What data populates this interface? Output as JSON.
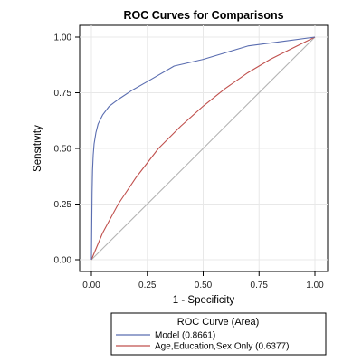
{
  "chart_data": {
    "type": "line",
    "title": "ROC Curves for Comparisons",
    "xlabel": "1 - Specificity",
    "ylabel": "Sensitivity",
    "xlim": [
      0,
      1
    ],
    "ylim": [
      0,
      1
    ],
    "x_ticks": [
      "0.00",
      "0.25",
      "0.50",
      "0.75",
      "1.00"
    ],
    "y_ticks": [
      "0.00",
      "0.25",
      "0.50",
      "0.75",
      "1.00"
    ],
    "grid": true,
    "legend": {
      "title": "ROC Curve (Area)",
      "placement": "bottom"
    },
    "series": [
      {
        "name": "Model",
        "area_label": "(0.8661)",
        "color": "#5a6db0",
        "x": [
          0,
          0.003,
          0.005,
          0.008,
          0.012,
          0.02,
          0.03,
          0.05,
          0.08,
          0.12,
          0.18,
          0.25,
          0.37,
          0.5,
          0.6,
          0.7,
          0.85,
          1.0
        ],
        "y": [
          0,
          0.3,
          0.4,
          0.47,
          0.52,
          0.57,
          0.61,
          0.65,
          0.69,
          0.72,
          0.76,
          0.8,
          0.87,
          0.9,
          0.93,
          0.96,
          0.98,
          1.0
        ]
      },
      {
        "name": "Age,Education,Sex Only",
        "area_label": "(0.6377)",
        "color": "#c0504d",
        "x": [
          0,
          0.05,
          0.12,
          0.2,
          0.3,
          0.4,
          0.5,
          0.6,
          0.7,
          0.8,
          0.9,
          1.0
        ],
        "y": [
          0,
          0.12,
          0.25,
          0.37,
          0.5,
          0.6,
          0.69,
          0.77,
          0.84,
          0.9,
          0.95,
          1.0
        ]
      },
      {
        "name": "",
        "color": "#b3b3b3",
        "x": [
          0,
          1
        ],
        "y": [
          0,
          1
        ]
      }
    ]
  }
}
